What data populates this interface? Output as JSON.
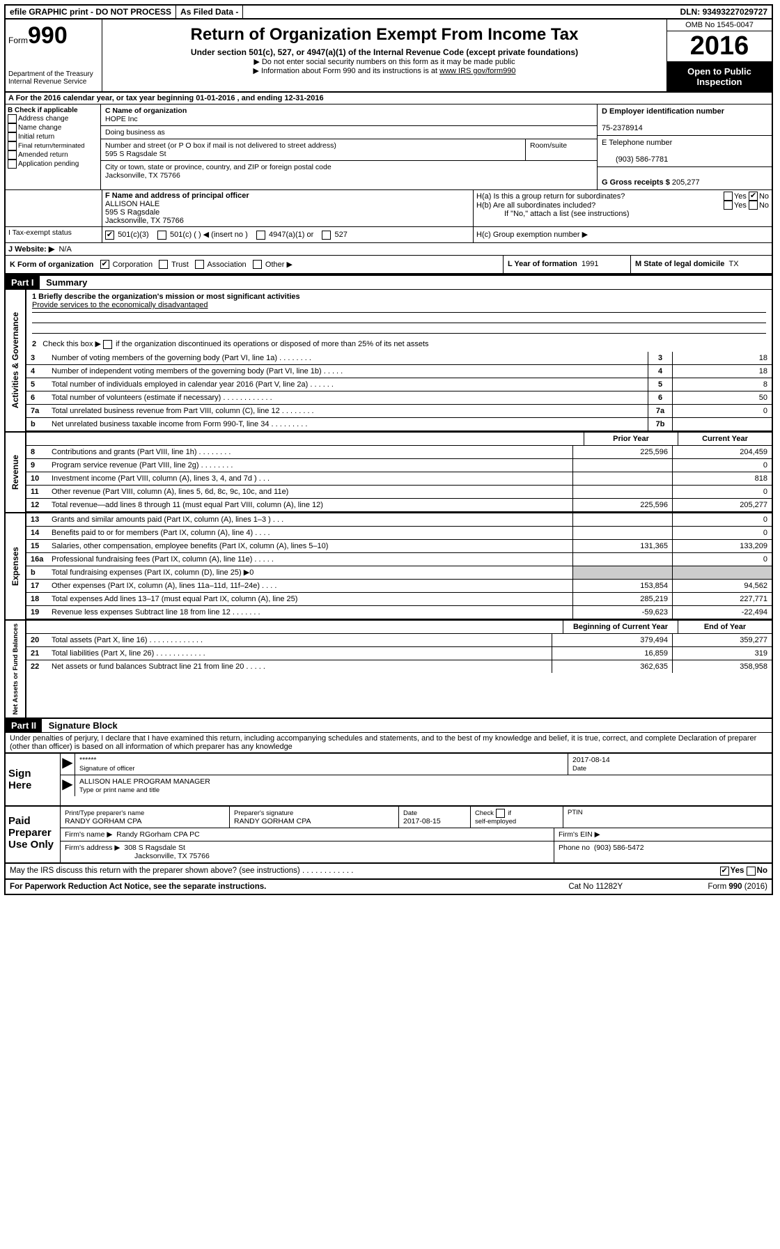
{
  "topbar": {
    "efile": "efile GRAPHIC print - DO NOT PROCESS",
    "asfiled": "As Filed Data -",
    "dln_label": "DLN:",
    "dln": "93493227029727"
  },
  "header": {
    "form_label": "Form",
    "form_number": "990",
    "dept": "Department of the Treasury",
    "irs": "Internal Revenue Service",
    "title": "Return of Organization Exempt From Income Tax",
    "subtitle": "Under section 501(c), 527, or 4947(a)(1) of the Internal Revenue Code (except private foundations)",
    "note1": "▶ Do not enter social security numbers on this form as it may be made public",
    "note2_pre": "▶ Information about Form 990 and its instructions is at ",
    "note2_link": "www IRS gov/form990",
    "omb": "OMB No  1545-0047",
    "year": "2016",
    "open": "Open to Public Inspection"
  },
  "lineA": "A   For the 2016 calendar year, or tax year beginning 01-01-2016   , and ending 12-31-2016",
  "sectionB": {
    "title": "B Check if applicable",
    "opts": [
      "Address change",
      "Name change",
      "Initial return",
      "Final return/terminated",
      "Amended return",
      "Application pending"
    ],
    "c_label": "C Name of organization",
    "c_val": "HOPE Inc",
    "dba_label": "Doing business as",
    "addr_label": "Number and street (or P O  box if mail is not delivered to street address)",
    "room_label": "Room/suite",
    "addr_val": "595 S Ragsdale St",
    "city_label": "City or town, state or province, country, and ZIP or foreign postal code",
    "city_val": "Jacksonville, TX  75766",
    "d_label": "D Employer identification number",
    "d_val": "75-2378914",
    "e_label": "E Telephone number",
    "e_val": "(903) 586-7781",
    "g_label": "G Gross receipts $",
    "g_val": "205,277"
  },
  "sectionF": {
    "label": "F  Name and address of principal officer",
    "name": "ALLISON HALE",
    "addr1": "595 S Ragsdale",
    "addr2": "Jacksonville, TX  75766"
  },
  "sectionH": {
    "ha": "H(a)  Is this a group return for subordinates?",
    "hb": "H(b)  Are all subordinates included?",
    "hb_note": "If \"No,\" attach a list  (see instructions)",
    "hc": "H(c)  Group exemption number ▶",
    "yes": "Yes",
    "no": "No"
  },
  "sectionI": {
    "label": "I   Tax-exempt status",
    "o1": "501(c)(3)",
    "o2": "501(c) (  ) ◀ (insert no )",
    "o3": "4947(a)(1) or",
    "o4": "527"
  },
  "sectionJ": {
    "label": "J   Website: ▶",
    "val": "N/A"
  },
  "sectionK": {
    "label": "K Form of organization",
    "o1": "Corporation",
    "o2": "Trust",
    "o3": "Association",
    "o4": "Other ▶"
  },
  "sectionL": {
    "label": "L Year of formation",
    "val": "1991"
  },
  "sectionM": {
    "label": "M State of legal domicile",
    "val": "TX"
  },
  "part1": {
    "num": "Part I",
    "title": "Summary",
    "l1_label": "1  Briefly describe the organization's mission or most significant activities",
    "l1_val": "Provide services to the economically disadvantaged",
    "l2": "2   Check this box ▶        if the organization discontinued its operations or disposed of more than 25% of its net assets",
    "sections": {
      "gov": "Activities & Governance",
      "rev": "Revenue",
      "exp": "Expenses",
      "net": "Net Assets or Fund Balances"
    },
    "gov_lines": [
      {
        "n": "3",
        "d": "Number of voting members of the governing body (Part VI, line 1a)   .    .    .    .    .    .    .    .",
        "b": "3",
        "v": "18"
      },
      {
        "n": "4",
        "d": "Number of independent voting members of the governing body (Part VI, line 1b)   .    .    .    .    .",
        "b": "4",
        "v": "18"
      },
      {
        "n": "5",
        "d": "Total number of individuals employed in calendar year 2016 (Part V, line 2a)   .    .    .    .    .    .",
        "b": "5",
        "v": "8"
      },
      {
        "n": "6",
        "d": "Total number of volunteers (estimate if necessary)   .    .    .    .    .    .    .    .    .    .    .    .",
        "b": "6",
        "v": "50"
      },
      {
        "n": "7a",
        "d": "Total unrelated business revenue from Part VIII, column (C), line 12   .    .    .    .    .    .    .    .",
        "b": "7a",
        "v": "0"
      },
      {
        "n": "b",
        "d": "Net unrelated business taxable income from Form 990-T, line 34   .    .    .    .    .    .    .    .    .",
        "b": "7b",
        "v": ""
      }
    ],
    "col_prior": "Prior Year",
    "col_current": "Current Year",
    "col_begin": "Beginning of Current Year",
    "col_end": "End of Year",
    "rev_lines": [
      {
        "n": "8",
        "d": "Contributions and grants (Part VIII, line 1h)   .    .    .    .    .    .    .    .",
        "p": "225,596",
        "c": "204,459"
      },
      {
        "n": "9",
        "d": "Program service revenue (Part VIII, line 2g)   .    .    .    .    .    .    .    .",
        "p": "",
        "c": "0"
      },
      {
        "n": "10",
        "d": "Investment income (Part VIII, column (A), lines 3, 4, and 7d )   .    .    .",
        "p": "",
        "c": "818"
      },
      {
        "n": "11",
        "d": "Other revenue (Part VIII, column (A), lines 5, 6d, 8c, 9c, 10c, and 11e)",
        "p": "",
        "c": "0"
      },
      {
        "n": "12",
        "d": "Total revenue—add lines 8 through 11 (must equal Part VIII, column (A), line 12)",
        "p": "225,596",
        "c": "205,277"
      }
    ],
    "exp_lines": [
      {
        "n": "13",
        "d": "Grants and similar amounts paid (Part IX, column (A), lines 1–3 )   .    .    .",
        "p": "",
        "c": "0"
      },
      {
        "n": "14",
        "d": "Benefits paid to or for members (Part IX, column (A), line 4)   .    .    .    .",
        "p": "",
        "c": "0"
      },
      {
        "n": "15",
        "d": "Salaries, other compensation, employee benefits (Part IX, column (A), lines 5–10)",
        "p": "131,365",
        "c": "133,209"
      },
      {
        "n": "16a",
        "d": "Professional fundraising fees (Part IX, column (A), line 11e)   .    .    .    .    .",
        "p": "",
        "c": "0"
      },
      {
        "n": "b",
        "d": "Total fundraising expenses (Part IX, column (D), line 25) ▶0",
        "p": "__SHADE__",
        "c": "__SHADE__"
      },
      {
        "n": "17",
        "d": "Other expenses (Part IX, column (A), lines 11a–11d, 11f–24e)   .    .    .    .",
        "p": "153,854",
        "c": "94,562"
      },
      {
        "n": "18",
        "d": "Total expenses  Add lines 13–17 (must equal Part IX, column (A), line 25)",
        "p": "285,219",
        "c": "227,771"
      },
      {
        "n": "19",
        "d": "Revenue less expenses  Subtract line 18 from line 12   .    .    .    .    .    .    .",
        "p": "-59,623",
        "c": "-22,494"
      }
    ],
    "net_lines": [
      {
        "n": "20",
        "d": "Total assets (Part X, line 16)   .    .    .    .    .    .    .    .    .    .    .    .    .",
        "p": "379,494",
        "c": "359,277"
      },
      {
        "n": "21",
        "d": "Total liabilities (Part X, line 26)   .    .    .    .    .    .    .    .    .    .    .    .",
        "p": "16,859",
        "c": "319"
      },
      {
        "n": "22",
        "d": "Net assets or fund balances  Subtract line 21 from line 20   .    .    .    .    .",
        "p": "362,635",
        "c": "358,958"
      }
    ]
  },
  "part2": {
    "num": "Part II",
    "title": "Signature Block",
    "decl": "Under penalties of perjury, I declare that I have examined this return, including accompanying schedules and statements, and to the best of my knowledge and belief, it is true, correct, and complete  Declaration of preparer (other than officer) is based on all information of which preparer has any knowledge"
  },
  "sign": {
    "label": "Sign Here",
    "stars": "******",
    "sig_label": "Signature of officer",
    "date": "2017-08-14",
    "date_label": "Date",
    "name": "ALLISON HALE  PROGRAM MANAGER",
    "name_label": "Type or print name and title"
  },
  "paid": {
    "label": "Paid Preparer Use Only",
    "h1": "Print/Type preparer's name",
    "v1": "RANDY GORHAM CPA",
    "h2": "Preparer's signature",
    "v2": "RANDY GORHAM CPA",
    "h3": "Date",
    "v3": "2017-08-15",
    "h4": "Check         if self-employed",
    "h5": "PTIN",
    "firm_label": "Firm's name    ▶",
    "firm_val": "Randy RGorham CPA PC",
    "ein_label": "Firm's EIN ▶",
    "addr_label": "Firm's address ▶",
    "addr_val": "308 S Ragsdale St",
    "addr_val2": "Jacksonville, TX  75766",
    "phone_label": "Phone no",
    "phone_val": "(903) 586-5472"
  },
  "footer": {
    "q": "May the IRS discuss this return with the preparer shown above? (see instructions)   .    .    .    .    .    .    .    .    .    .    .    .",
    "yes": "Yes",
    "no": "No",
    "pra": "For Paperwork Reduction Act Notice, see the separate instructions.",
    "cat": "Cat  No  11282Y",
    "form": "Form 990 (2016)"
  }
}
